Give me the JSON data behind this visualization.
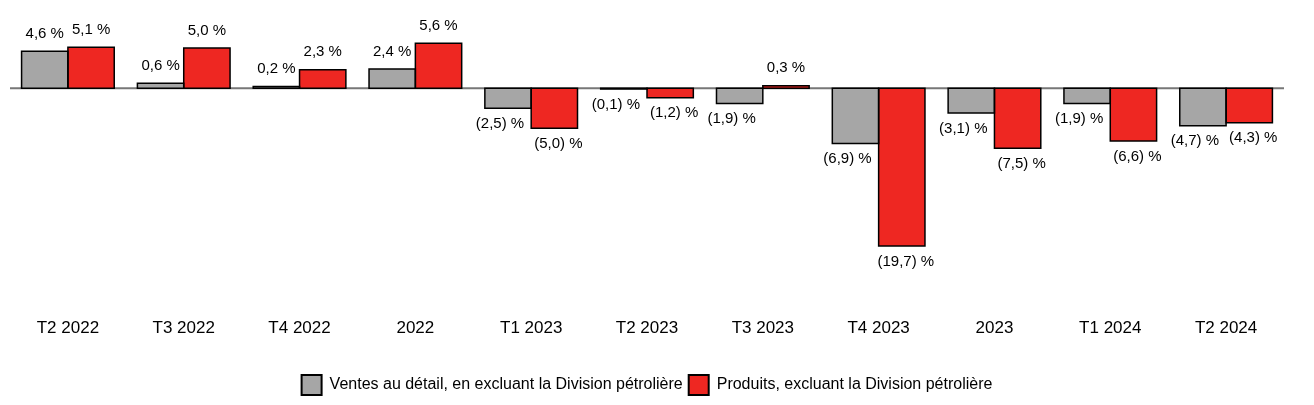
{
  "chart_data": {
    "type": "bar",
    "categories": [
      "T2 2022",
      "T3 2022",
      "T4 2022",
      "2022",
      "T1 2023",
      "T2 2023",
      "T3 2023",
      "T4 2023",
      "2023",
      "T1 2024",
      "T2 2024"
    ],
    "series": [
      {
        "name": "Ventes au détail, en excluant la Division pétrolière",
        "color": "#a6a6a6",
        "values": [
          4.6,
          0.6,
          0.2,
          2.4,
          -2.5,
          -0.1,
          -1.9,
          -6.9,
          -3.1,
          -1.9,
          -4.7
        ],
        "value_labels": [
          "4,6 %",
          "0,6 %",
          "0,2 %",
          "2,4 %",
          "(2,5) %",
          "(0,1) %",
          "(1,9) %",
          "(6,9) %",
          "(3,1) %",
          "(1,9) %",
          "(4,7) %"
        ]
      },
      {
        "name": "Produits, excluant la Division pétrolière",
        "color": "#ee2722",
        "values": [
          5.1,
          5.0,
          2.3,
          5.6,
          -5.0,
          -1.2,
          0.3,
          -19.7,
          -7.5,
          -6.6,
          -4.3
        ],
        "value_labels": [
          "5,1 %",
          "5,0 %",
          "2,3 %",
          "5,6 %",
          "(5,0) %",
          "(1,2) %",
          "0,3 %",
          "(19,7) %",
          "(7,5) %",
          "(6,6) %",
          "(4,3) %"
        ]
      }
    ],
    "grid": false,
    "legend": "bottom"
  }
}
